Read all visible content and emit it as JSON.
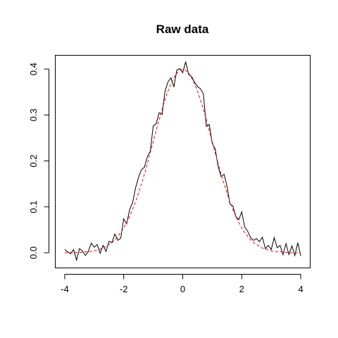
{
  "chart_data": {
    "type": "line",
    "title": "Raw data",
    "xlabel": "",
    "ylabel": "",
    "xlim": [
      -4.32,
      4.32
    ],
    "ylim": [
      -0.033,
      0.43
    ],
    "x_ticks": [
      -4,
      -2,
      0,
      2,
      4
    ],
    "x_tick_labels": [
      "-4",
      "-2",
      "0",
      "2",
      "4"
    ],
    "y_ticks": [
      0.0,
      0.1,
      0.2,
      0.3,
      0.4
    ],
    "y_tick_labels": [
      "0.0",
      "0.1",
      "0.2",
      "0.3",
      "0.4"
    ],
    "grid": false,
    "series": [
      {
        "style": "solid",
        "color": "#000000",
        "x": [
          -4.0,
          -3.9,
          -3.8,
          -3.7,
          -3.6,
          -3.5,
          -3.4,
          -3.3,
          -3.2,
          -3.1,
          -3.0,
          -2.9,
          -2.8,
          -2.7,
          -2.6,
          -2.5,
          -2.4,
          -2.3,
          -2.2,
          -2.1,
          -2.0,
          -1.9,
          -1.8,
          -1.7,
          -1.6,
          -1.5,
          -1.4,
          -1.3,
          -1.2,
          -1.1,
          -1.0,
          -0.9,
          -0.8,
          -0.7,
          -0.6,
          -0.5,
          -0.4,
          -0.3,
          -0.2,
          -0.1,
          0.0,
          0.1,
          0.2,
          0.3,
          0.4,
          0.5,
          0.6,
          0.7,
          0.8,
          0.9,
          1.0,
          1.1,
          1.2,
          1.3,
          1.4,
          1.5,
          1.6,
          1.7,
          1.8,
          1.9,
          2.0,
          2.1,
          2.2,
          2.3,
          2.4,
          2.5,
          2.6,
          2.7,
          2.8,
          2.9,
          3.0,
          3.1,
          3.2,
          3.3,
          3.4,
          3.5,
          3.6,
          3.7,
          3.8,
          3.9,
          4.0
        ],
        "y": [
          0.007,
          0.002,
          -0.002,
          0.007,
          -0.016,
          0.009,
          0.004,
          -0.006,
          0.003,
          0.021,
          0.012,
          0.018,
          -0.001,
          0.016,
          0.003,
          0.025,
          0.022,
          0.041,
          0.027,
          0.032,
          0.074,
          0.063,
          0.094,
          0.109,
          0.141,
          0.164,
          0.181,
          0.186,
          0.209,
          0.221,
          0.276,
          0.281,
          0.305,
          0.301,
          0.352,
          0.372,
          0.381,
          0.361,
          0.398,
          0.401,
          0.392,
          0.416,
          0.388,
          0.384,
          0.371,
          0.362,
          0.357,
          0.346,
          0.275,
          0.279,
          0.238,
          0.226,
          0.188,
          0.166,
          0.171,
          0.145,
          0.106,
          0.102,
          0.079,
          0.072,
          0.089,
          0.056,
          0.047,
          0.033,
          0.027,
          0.031,
          0.024,
          0.034,
          0.009,
          0.016,
          0.007,
          0.033,
          0.011,
          0.016,
          -0.004,
          0.02,
          -0.004,
          0.015,
          -0.006,
          0.022,
          -0.007
        ]
      },
      {
        "style": "dashed",
        "color": "#ff0000",
        "x": [
          -4.0,
          -3.9,
          -3.8,
          -3.7,
          -3.6,
          -3.5,
          -3.4,
          -3.3,
          -3.2,
          -3.1,
          -3.0,
          -2.9,
          -2.8,
          -2.7,
          -2.6,
          -2.5,
          -2.4,
          -2.3,
          -2.2,
          -2.1,
          -2.0,
          -1.9,
          -1.8,
          -1.7,
          -1.6,
          -1.5,
          -1.4,
          -1.3,
          -1.2,
          -1.1,
          -1.0,
          -0.9,
          -0.8,
          -0.7,
          -0.6,
          -0.5,
          -0.4,
          -0.3,
          -0.2,
          -0.1,
          0.0,
          0.1,
          0.2,
          0.3,
          0.4,
          0.5,
          0.6,
          0.7,
          0.8,
          0.9,
          1.0,
          1.1,
          1.2,
          1.3,
          1.4,
          1.5,
          1.6,
          1.7,
          1.8,
          1.9,
          2.0,
          2.1,
          2.2,
          2.3,
          2.4,
          2.5,
          2.6,
          2.7,
          2.8,
          2.9,
          3.0,
          3.1,
          3.2,
          3.3,
          3.4,
          3.5,
          3.6,
          3.7,
          3.8,
          3.9,
          4.0
        ],
        "y": [
          0.0,
          0.0,
          0.0,
          0.0,
          0.001,
          0.001,
          0.001,
          0.002,
          0.002,
          0.003,
          0.004,
          0.006,
          0.008,
          0.01,
          0.014,
          0.018,
          0.022,
          0.028,
          0.036,
          0.044,
          0.054,
          0.066,
          0.079,
          0.094,
          0.111,
          0.13,
          0.15,
          0.171,
          0.194,
          0.218,
          0.242,
          0.266,
          0.29,
          0.312,
          0.333,
          0.352,
          0.368,
          0.381,
          0.391,
          0.397,
          0.399,
          0.397,
          0.391,
          0.381,
          0.368,
          0.352,
          0.333,
          0.312,
          0.29,
          0.266,
          0.242,
          0.218,
          0.194,
          0.171,
          0.15,
          0.13,
          0.111,
          0.094,
          0.079,
          0.066,
          0.054,
          0.044,
          0.036,
          0.028,
          0.022,
          0.018,
          0.014,
          0.01,
          0.008,
          0.006,
          0.004,
          0.003,
          0.002,
          0.002,
          0.001,
          0.001,
          0.001,
          0.0,
          0.0,
          0.0,
          0.0
        ]
      }
    ]
  }
}
